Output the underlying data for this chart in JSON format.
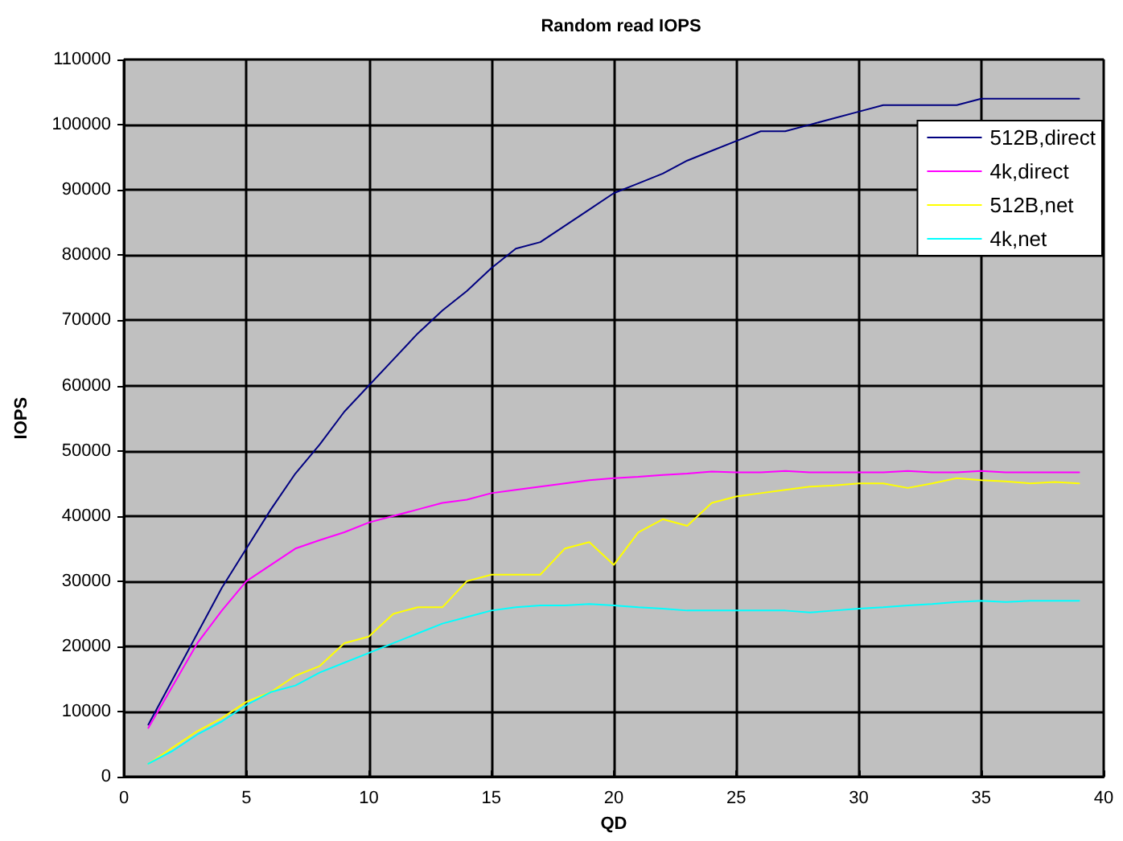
{
  "chart_data": {
    "type": "line",
    "title": "Random read IOPS",
    "xlabel": "QD",
    "ylabel": "IOPS",
    "x": [
      1,
      2,
      3,
      4,
      5,
      6,
      7,
      8,
      9,
      10,
      11,
      12,
      13,
      14,
      15,
      16,
      17,
      18,
      19,
      20,
      21,
      22,
      23,
      24,
      25,
      26,
      27,
      28,
      29,
      30,
      31,
      32,
      33,
      34,
      35,
      36,
      37,
      38,
      39
    ],
    "series": [
      {
        "name": "512B,direct",
        "color": "#000080",
        "values": [
          8000,
          15000,
          22000,
          29000,
          35000,
          41000,
          46500,
          51000,
          56000,
          60000,
          64000,
          68000,
          71500,
          74500,
          78000,
          81000,
          82000,
          84500,
          87000,
          89500,
          91000,
          92500,
          94500,
          96000,
          97500,
          99000,
          99000,
          100000,
          101000,
          102000,
          103000,
          103000,
          103000,
          103000,
          104000,
          104000,
          104000,
          104000,
          104000
        ]
      },
      {
        "name": "4k,direct",
        "color": "#ff00ff",
        "values": [
          7500,
          14000,
          20500,
          25500,
          30000,
          32500,
          35000,
          36300,
          37500,
          39000,
          40000,
          41000,
          42000,
          42500,
          43500,
          44000,
          44500,
          45000,
          45500,
          45800,
          46000,
          46300,
          46500,
          46800,
          46700,
          46700,
          46900,
          46700,
          46700,
          46700,
          46700,
          46900,
          46700,
          46700,
          46900,
          46700,
          46700,
          46700,
          46700
        ]
      },
      {
        "name": "512B,net",
        "color": "#ffff00",
        "values": [
          2000,
          4500,
          7000,
          9000,
          11500,
          13000,
          15500,
          17000,
          20500,
          21500,
          25000,
          26000,
          26000,
          30000,
          31000,
          31000,
          31000,
          35000,
          36000,
          32500,
          37500,
          39500,
          38500,
          42000,
          43000,
          43500,
          44000,
          44500,
          44700,
          45000,
          45000,
          44300,
          45000,
          45800,
          45500,
          45300,
          45000,
          45200,
          45000
        ]
      },
      {
        "name": "4k,net",
        "color": "#00ffff",
        "values": [
          2000,
          4000,
          6500,
          8500,
          11000,
          13000,
          14000,
          16000,
          17500,
          19000,
          20500,
          22000,
          23500,
          24500,
          25500,
          26000,
          26300,
          26300,
          26500,
          26300,
          26000,
          25800,
          25500,
          25500,
          25500,
          25500,
          25500,
          25200,
          25500,
          25800,
          26000,
          26300,
          26500,
          26800,
          27000,
          26800,
          27000,
          27000,
          27000
        ]
      }
    ],
    "xlim": [
      0,
      40
    ],
    "xticks": [
      0,
      5,
      10,
      15,
      20,
      25,
      30,
      35,
      40
    ],
    "ylim": [
      0,
      110000
    ],
    "yticks": [
      0,
      10000,
      20000,
      30000,
      40000,
      50000,
      60000,
      70000,
      80000,
      90000,
      100000,
      110000
    ],
    "grid": true,
    "legend": "top right",
    "marker": "none",
    "line_style": "solid"
  }
}
